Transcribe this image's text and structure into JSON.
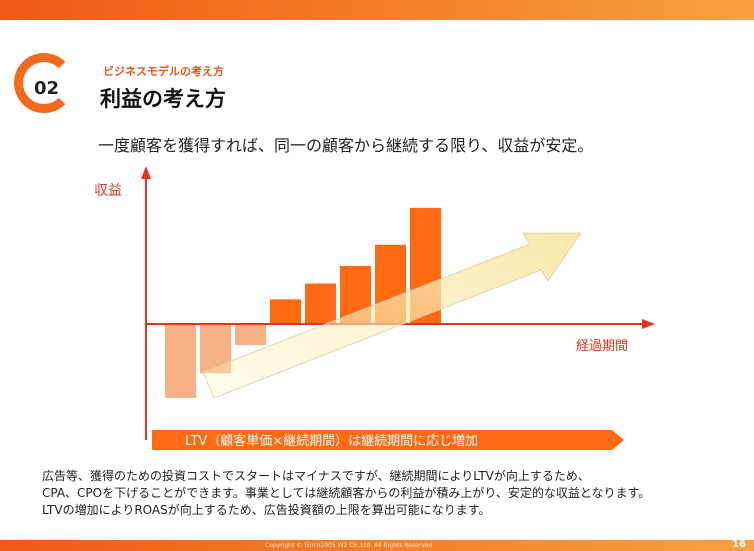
{
  "header": {
    "number": "02",
    "subtitle": "ビジネスモデルの考え方",
    "title": "利益の考え方"
  },
  "lead": "一度顧客を獲得すれば、同一の顧客から継続する限り、収益が安定。",
  "chart_data": {
    "type": "bar",
    "ylabel": "収益",
    "xlabel": "経過期間",
    "banner": "LTV（顧客単価×継続期間）は継続期間に応じ増加",
    "values": [
      -4.2,
      -2.8,
      -1.2,
      1.4,
      2.3,
      3.3,
      4.5,
      6.6
    ],
    "ylim": [
      -5,
      7.5
    ],
    "colors": {
      "negative": "#f5b084",
      "positive": "#ff6a13",
      "axis": "#e8331c",
      "banner": "#ff6a13"
    }
  },
  "body": {
    "lines": [
      "広告等、獲得のための投資コストでスタートはマイナスですが、継続期間によりLTVが向上するため、",
      "CPA、CPOを下げることができます。事業としては継続顧客からの利益が積み上がり、安定的な収益となります。",
      "LTVの増加によりROASが向上するため、広告投資額の上限を算出可能になります。"
    ]
  },
  "footer": {
    "copyright": "Copyright © Since2005 W2 Co.,Ltd. All Rights Reserved",
    "page_number": "16"
  }
}
